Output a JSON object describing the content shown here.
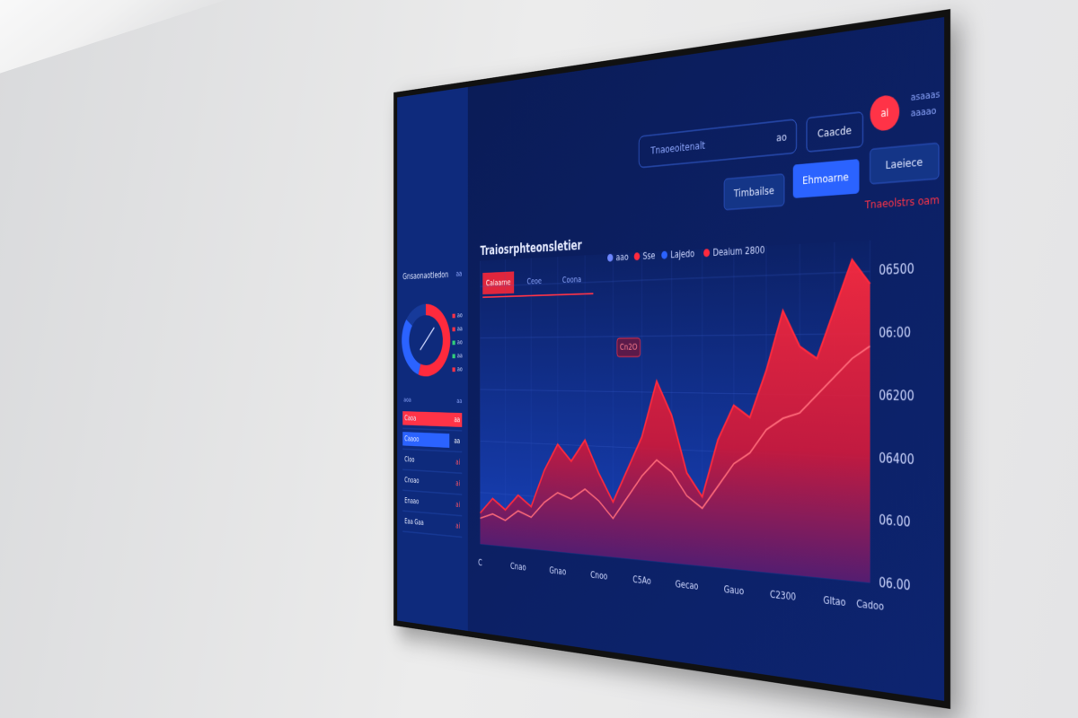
{
  "header": {
    "search": "Tnaoeoitenalt",
    "search_badge": "ao",
    "button": "Caacde",
    "badge": "ai",
    "meta": [
      "asaaas",
      "aaaao"
    ]
  },
  "tabs": [
    "Timbailse",
    "Ehmoarne",
    "Laeiece"
  ],
  "sidebar": {
    "title": "Gnsaonaotledon",
    "badge": "aa",
    "gauge": {
      "values": [
        55,
        30,
        15
      ],
      "colors": [
        "#ff2a3d",
        "#2b63ff",
        "#173a9a"
      ]
    },
    "gauge_legend": [
      "ao",
      "aa",
      "ao",
      "aa",
      "ao"
    ],
    "list_header": [
      "aoa",
      "aa"
    ],
    "list": [
      {
        "label": "Caoa",
        "value": "aa"
      },
      {
        "label": "Caaoo",
        "value": "aa"
      },
      {
        "label": "Cloo",
        "value": "ai"
      },
      {
        "label": "Cnoao",
        "value": "ai"
      },
      {
        "label": "Enaao",
        "value": "ai"
      },
      {
        "label": "Eaa  Gaa",
        "value": "ai"
      }
    ]
  },
  "chart_data": {
    "type": "area",
    "title": "Traiosrphteonsletier",
    "annotation": "Tnaeolstrs oam",
    "callout": "Cn2O",
    "chart_tabs": [
      "Calaarne",
      "Ceoe",
      "Coona"
    ],
    "legend": [
      {
        "label": "aao",
        "color": "#6d86ff"
      },
      {
        "label": "Sse",
        "color": "#ff2a3d"
      },
      {
        "label": "Lajedo",
        "color": "#2b63ff"
      },
      {
        "label": "Deaium 2800",
        "color": "#ff2a3d"
      }
    ],
    "categories": [
      "C",
      null,
      null,
      "Cnao",
      null,
      null,
      "Gnao",
      null,
      null,
      "Cnoo",
      null,
      null,
      "C5Ao",
      null,
      null,
      "Gecao",
      null,
      null,
      "Gauo",
      null,
      null,
      "C2300",
      null,
      null,
      "Gltao",
      null,
      "Cadoo"
    ],
    "series": [
      {
        "color": "#ff2a3d",
        "values": [
          0.6,
          0.9,
          0.7,
          1.0,
          0.8,
          1.5,
          2.0,
          1.7,
          2.1,
          1.5,
          1.0,
          1.6,
          2.2,
          3.2,
          2.6,
          1.6,
          1.2,
          2.2,
          2.8,
          2.6,
          3.4,
          4.4,
          3.8,
          3.6,
          4.4,
          5.2,
          4.8
        ]
      },
      {
        "color": "#ff6b7a",
        "values": [
          0.5,
          0.6,
          0.5,
          0.7,
          0.6,
          0.9,
          1.1,
          1.0,
          1.2,
          1.0,
          0.7,
          1.1,
          1.5,
          1.8,
          1.6,
          1.2,
          1.0,
          1.4,
          1.8,
          2.0,
          2.4,
          2.6,
          2.7,
          3.0,
          3.3,
          3.6,
          3.8
        ]
      }
    ],
    "ylim": [
      0,
      5.5
    ],
    "yticks": [
      {
        "value": 0,
        "label": "06.00"
      },
      {
        "value": 1,
        "label": "06.00"
      },
      {
        "value": 2,
        "label": "06400"
      },
      {
        "value": 3,
        "label": "06200"
      },
      {
        "value": 4,
        "label": "06:00"
      },
      {
        "value": 5,
        "label": "06500"
      }
    ],
    "grid": true
  }
}
